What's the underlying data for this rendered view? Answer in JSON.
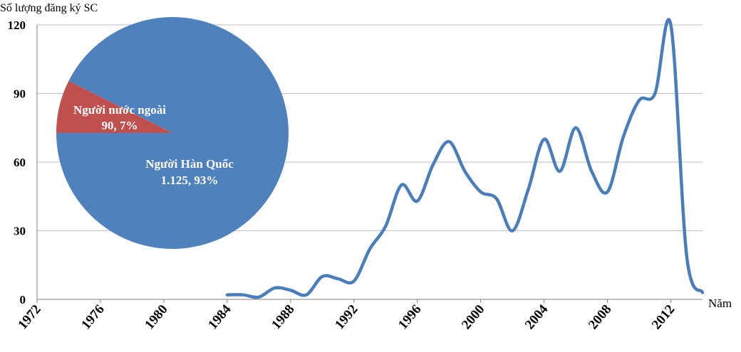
{
  "chart_data": {
    "type": "line",
    "ylabel": "Số lượng đăng ký SC",
    "xlabel": "Năm",
    "ylim": [
      0,
      120
    ],
    "xlim": [
      1972,
      2014
    ],
    "y_ticks": [
      "0",
      "30",
      "60",
      "90",
      "120"
    ],
    "x_ticks": [
      "1972",
      "1976",
      "1980",
      "1984",
      "1988",
      "1992",
      "1996",
      "2000",
      "2004",
      "2008",
      "2012"
    ],
    "grid": true,
    "series": [
      {
        "color": "#4a7ebb",
        "x": [
          1984,
          1985,
          1986,
          1987,
          1988,
          1989,
          1990,
          1991,
          1992,
          1993,
          1994,
          1995,
          1996,
          1997,
          1998,
          1999,
          2000,
          2001,
          2002,
          2003,
          2004,
          2005,
          2006,
          2007,
          2008,
          2009,
          2010,
          2011,
          2012,
          2013,
          2014
        ],
        "y": [
          2,
          2,
          1,
          5,
          4,
          2,
          10,
          9,
          8,
          22,
          32,
          50,
          43,
          59,
          69,
          56,
          47,
          44,
          30,
          48,
          70,
          56,
          75,
          56,
          47,
          71,
          87,
          90,
          120,
          19,
          3
        ]
      }
    ],
    "inset_pie": {
      "slices": [
        {
          "label": "Người Hàn Quốc",
          "value_text": "1.125,  93%",
          "value": 1125,
          "percent": 93,
          "color": "#4f81bd"
        },
        {
          "label": "Người nước ngoài",
          "value_text": "90,  7%",
          "value": 90,
          "percent": 7,
          "color": "#c0504d"
        }
      ]
    }
  }
}
